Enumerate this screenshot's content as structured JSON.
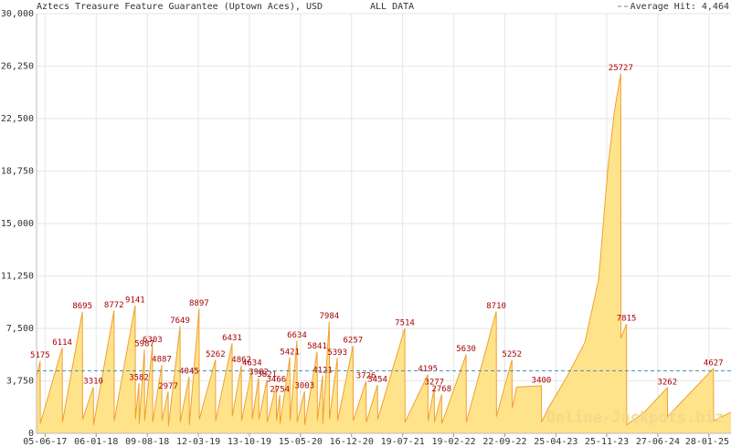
{
  "chart_data": {
    "type": "area",
    "title": "Aztecs Treasure Feature Guarantee (Uptown Aces), USD",
    "subtitle": "ALL DATA",
    "watermark": "Online-Jackpots.biz",
    "color": "#ffe38a",
    "line_color": "#f0a030",
    "label_color": "#aa0000",
    "grid": true,
    "x": [
      "30-04-17",
      "15-05-17",
      "16-05-17",
      "16-08-17",
      "17-08-17",
      "09-11-17",
      "10-11-17",
      "25-12-17",
      "26-12-17",
      "22-03-18",
      "23-03-18",
      "19-06-18",
      "20-06-18",
      "05-07-18",
      "06-07-18",
      "28-07-18",
      "29-07-18",
      "31-08-18",
      "01-09-18",
      "09-10-18",
      "10-10-18",
      "05-11-18",
      "06-11-18",
      "25-12-18",
      "26-12-18",
      "01-02-19",
      "02-02-19",
      "15-03-19",
      "16-03-19",
      "23-05-19",
      "24-05-19",
      "01-08-19",
      "02-08-19",
      "09-09-19",
      "10-09-19",
      "24-10-19",
      "25-10-19",
      "21-11-19",
      "22-11-19",
      "26-12-19",
      "27-12-19",
      "03-02-20",
      "04-02-20",
      "18-02-20",
      "19-02-20",
      "31-03-20",
      "01-04-20",
      "30-04-20",
      "01-05-20",
      "01-06-20",
      "02-06-20",
      "24-07-20",
      "25-07-20",
      "16-08-20",
      "17-08-20",
      "13-09-20",
      "14-09-20",
      "17-10-20",
      "18-10-20",
      "22-12-20",
      "23-12-20",
      "15-02-21",
      "16-02-21",
      "04-04-21",
      "05-04-21",
      "28-07-21",
      "29-07-21",
      "02-11-21",
      "03-11-21",
      "29-11-21",
      "30-11-21",
      "30-12-21",
      "31-12-21",
      "12-04-22",
      "13-04-22",
      "17-08-22",
      "18-08-22",
      "22-10-22",
      "23-10-22",
      "11-11-22",
      "23-02-23",
      "24-02-23",
      "24-03-23",
      "09-06-23",
      "25-08-23",
      "22-10-23",
      "30-11-23",
      "27-12-23",
      "23-01-24",
      "24-01-24",
      "16-02-24",
      "17-02-24",
      "01-05-24",
      "06-08-24",
      "07-08-24",
      "16-02-25",
      "17-02-25",
      "01-05-25"
    ],
    "values": [
      4000,
      5175,
      700,
      6114,
      800,
      8695,
      1000,
      3310,
      600,
      8772,
      900,
      9141,
      1000,
      3582,
      700,
      5987,
      900,
      6303,
      800,
      4887,
      900,
      2977,
      500,
      7649,
      800,
      4045,
      600,
      8897,
      1000,
      5262,
      900,
      6431,
      1200,
      4862,
      900,
      4634,
      1000,
      3982,
      1000,
      3821,
      800,
      3466,
      900,
      2754,
      700,
      5421,
      900,
      6634,
      800,
      3003,
      600,
      5841,
      900,
      4121,
      700,
      7984,
      1000,
      5393,
      900,
      6257,
      900,
      3726,
      800,
      3454,
      1000,
      7514,
      800,
      4195,
      900,
      3277,
      800,
      2768,
      700,
      5630,
      800,
      8710,
      1200,
      5252,
      1800,
      3300,
      3400,
      800,
      1800,
      4000,
      6500,
      11000,
      19000,
      23000,
      25727,
      6800,
      7815,
      600,
      1500,
      3262,
      1200,
      4627,
      900,
      1500
    ],
    "value_labels": [
      null,
      "5175",
      null,
      "6114",
      null,
      "8695",
      null,
      "3310",
      null,
      "8772",
      null,
      "9141",
      null,
      "3582",
      null,
      "5987",
      null,
      "6303",
      null,
      "4887",
      null,
      "2977",
      null,
      "7649",
      null,
      "4045",
      null,
      "8897",
      null,
      "5262",
      null,
      "6431",
      null,
      "4862",
      null,
      "4634",
      null,
      "3982",
      null,
      "3821",
      null,
      "3466",
      null,
      "2754",
      null,
      "5421",
      null,
      "6634",
      null,
      "3003",
      null,
      "5841",
      null,
      "4121",
      null,
      "7984",
      null,
      "5393",
      null,
      "6257",
      null,
      "3726",
      null,
      "3454",
      null,
      "7514",
      null,
      "4195",
      null,
      "3277",
      null,
      "2768",
      null,
      "5630",
      null,
      "8710",
      null,
      "5252",
      null,
      null,
      "3400",
      null,
      null,
      null,
      null,
      null,
      null,
      null,
      "25727",
      null,
      "7815",
      null,
      null,
      "3262",
      null,
      "4627",
      null,
      null
    ],
    "xlim": [
      "30-04-17",
      "01-05-25"
    ],
    "xticks": [
      "05-06-17",
      "06-01-18",
      "09-08-18",
      "12-03-19",
      "13-10-19",
      "15-05-20",
      "16-12-20",
      "19-07-21",
      "19-02-22",
      "22-09-22",
      "25-04-23",
      "25-11-23",
      "27-06-24",
      "28-01-25"
    ],
    "ylim": [
      0,
      30000
    ],
    "yticks": [
      0,
      {
        "value": 3750,
        "label": "3,750"
      },
      {
        "value": 7500,
        "label": "7,500"
      },
      {
        "value": 11250,
        "label": "11,250"
      },
      {
        "value": 15000,
        "label": "15,000"
      },
      {
        "value": 18750,
        "label": "18,750"
      },
      {
        "value": 22500,
        "label": "22,500"
      },
      {
        "value": 26250,
        "label": "26,250"
      },
      {
        "value": 30000,
        "label": "30,000"
      }
    ],
    "average_line": {
      "name": "Average Hit:",
      "value": 4464,
      "value_label": "4,464",
      "color": "#4a90b8"
    }
  }
}
